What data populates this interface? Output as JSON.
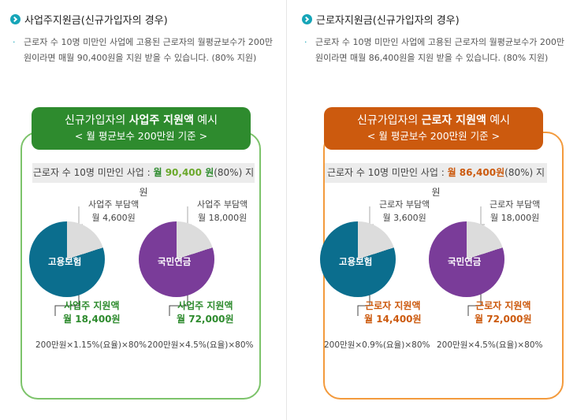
{
  "left": {
    "section_title": "사업주지원금(신규가입자의 경우)",
    "description": "근로자 수 10명 미만인 사업에 고용된 근로자의 월평균보수가 200만원이라면 매월 90,400원을 지원 받을 수 있습니다. (80% 지원)",
    "banner_pre": "신규가입자의 ",
    "banner_bold": "사업주 지원액",
    "banner_post": " 예시",
    "banner_line2": "< 월 평균보수 200만원 기준 >",
    "bar_pre": "근로자 수 10명 미만인 사업 : ",
    "bar_amount_a": "월 ",
    "bar_amount_b": "90,400",
    "bar_amount_c": " 원",
    "bar_post": "(80%) 지원",
    "pie1": {
      "name": "고용보험",
      "burden_title": "사업주 부담액",
      "burden_amount": "월 4,600원",
      "support_title": "사업주 지원액",
      "support_amount": "월 18,400원",
      "formula": "200만원×1.15%(요율)×80%",
      "share": 0.8,
      "color": "#0b6e8e"
    },
    "pie2": {
      "name": "국민연금",
      "burden_title": "사업주 부담액",
      "burden_amount": "월 18,000원",
      "support_title": "사업주 지원액",
      "support_amount": "월 72,000원",
      "formula": "200만원×4.5%(요율)×80%",
      "share": 0.8,
      "color": "#7a3c99"
    }
  },
  "right": {
    "section_title": "근로자지원금(신규가입자의 경우)",
    "description": "근로자 수 10명 미만인 사업에 고용된 근로자의 월평균보수가 200만원이라면 매월 86,400원을 지원 받을 수 있습니다. (80% 지원)",
    "banner_pre": "신규가입자의 ",
    "banner_bold": "근로자 지원액",
    "banner_post": " 예시",
    "banner_line2": "< 월 평균보수 200만원 기준 >",
    "bar_pre": "근로자 수 10명 미만인 사업 : ",
    "bar_amount": "월 86,400원",
    "bar_post": "(80%) 지원",
    "pie1": {
      "name": "고용보험",
      "burden_title": "근로자 부담액",
      "burden_amount": "월 3,600원",
      "support_title": "근로자 지원액",
      "support_amount": "월 14,400원",
      "formula": "200만원×0.9%(요율)×80%",
      "share": 0.8,
      "color": "#0b6e8e"
    },
    "pie2": {
      "name": "국민연금",
      "burden_title": "근로자 부담액",
      "burden_amount": "월 18,000원",
      "support_title": "근로자 지원액",
      "support_amount": "월 72,000원",
      "formula": "200만원×4.5%(요율)×80%",
      "share": 0.8,
      "color": "#7a3c99"
    }
  },
  "colors": {
    "burden_slice": "#dcdcdc",
    "accent_left": "#2e8b2e",
    "accent_right": "#cc5a0e",
    "bullet": "#16a5b8"
  }
}
